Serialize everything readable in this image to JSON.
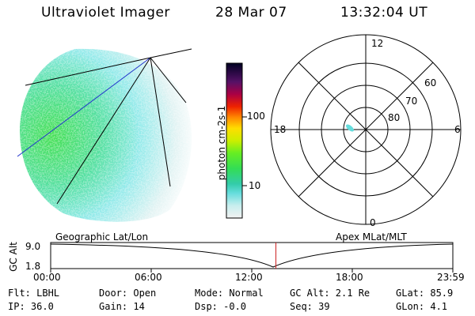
{
  "header": {
    "instrument": "Ultraviolet Imager",
    "date": "28 Mar 07",
    "time": "13:32:04 UT"
  },
  "colorbar": {
    "unit_label": "photon cm-2s-1",
    "ticks": [
      "100",
      "10"
    ]
  },
  "polar_plot": {
    "mlt_labels": {
      "top": "12",
      "left": "18",
      "right": "6",
      "bottom": "0"
    },
    "mlat_labels": [
      "60",
      "70",
      "80"
    ]
  },
  "orbit_plot": {
    "left_title": "Geographic Lat/Lon",
    "right_title": "Apex MLat/MLT",
    "y_axis_label": "GC Alt",
    "y_ticks": [
      "9.0",
      "1.8"
    ],
    "x_ticks": [
      "00:00",
      "06:00",
      "12:00",
      "18:00",
      "23:59"
    ],
    "marker_fraction": 0.56
  },
  "status": {
    "flt": "Flt: LBHL",
    "ip": "IP: 36.0",
    "door": "Door: Open",
    "gain": "Gain: 14",
    "mode": "Mode: Normal",
    "dsp": "Dsp:   -0.0",
    "gcalt": "GC Alt: 2.1 Re",
    "seq": "Seq: 39",
    "glat": "GLat:  85.9",
    "glon": "GLon:   4.1"
  }
}
